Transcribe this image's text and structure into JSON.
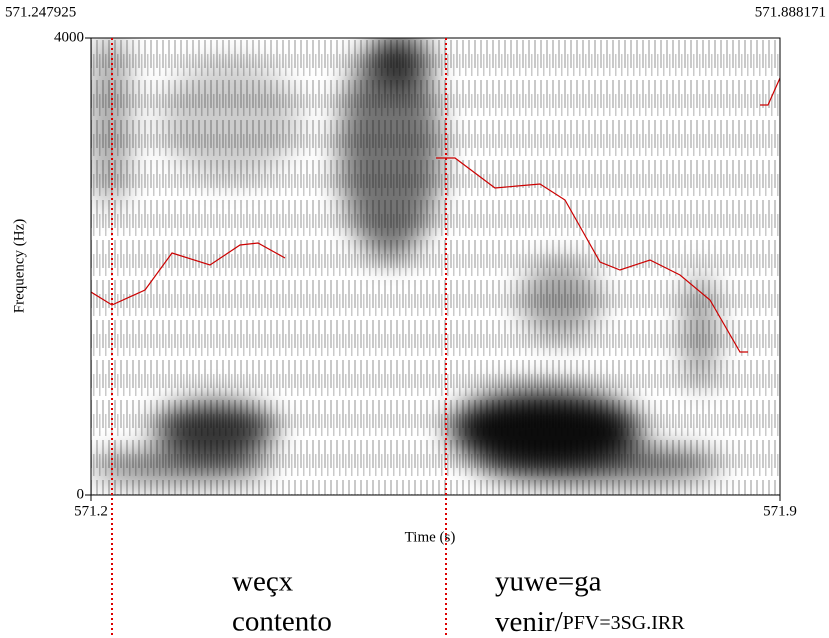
{
  "header": {
    "start_time": "571.247925",
    "end_time": "571.888171"
  },
  "y_axis": {
    "label": "Frequency (Hz)",
    "top_tick": "4000",
    "bottom_tick": "0"
  },
  "x_axis": {
    "label": "Time (s)",
    "left_tick": "571.2",
    "right_tick": "571.9"
  },
  "annotations": {
    "word_1": {
      "form": "weçx",
      "gloss": "contento"
    },
    "word_2": {
      "form": "yuwe=ga",
      "gloss_main": "venir/",
      "gloss_grammar": "PFV=3SG.IRR"
    }
  }
}
